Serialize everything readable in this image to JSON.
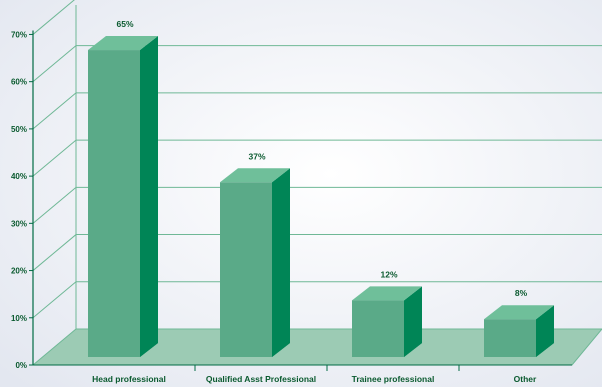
{
  "chart_data": {
    "type": "bar",
    "title": "",
    "xlabel": "",
    "ylabel": "",
    "categories": [
      "Head professional",
      "Qualified Asst Professional",
      "Trainee professional",
      "Other"
    ],
    "values": [
      65,
      37,
      12,
      8
    ],
    "value_labels": [
      "65%",
      "37%",
      "12%",
      "8%"
    ],
    "y_ticks": [
      "0%",
      "10%",
      "20%",
      "30%",
      "40%",
      "50%",
      "60%",
      "70%"
    ],
    "y_tick_values": [
      0,
      10,
      20,
      30,
      40,
      50,
      60,
      70
    ],
    "ylim": [
      0,
      75
    ],
    "grid": true,
    "legend": "none",
    "style": "3d",
    "colors": {
      "bar_front": "#5aaa88",
      "bar_side": "#008556",
      "bar_top": "#6fbf9a",
      "floor": "#9ccbb4",
      "wall_lines": "#6fb896",
      "background": "#eef0f6"
    }
  }
}
